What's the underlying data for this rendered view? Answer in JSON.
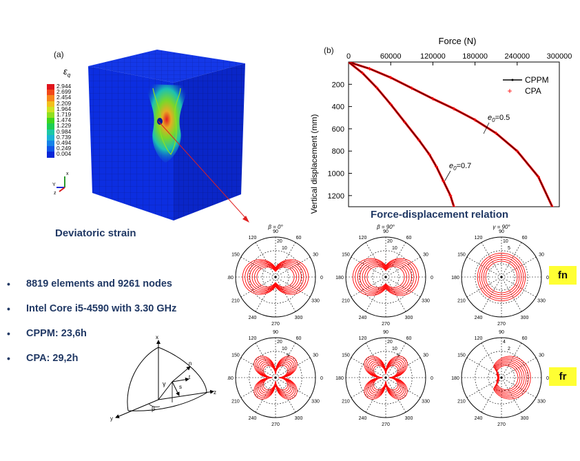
{
  "panel_a": {
    "tag": "(a)",
    "legend_title": "ε",
    "legend_sub": "q",
    "legend_values": [
      "2.944",
      "2.699",
      "2.454",
      "2.209",
      "1.964",
      "1.719",
      "1.474",
      "1.229",
      "0.984",
      "0.739",
      "0.494",
      "0.249",
      "0.004"
    ],
    "legend_colors": [
      "#e0141c",
      "#f24818",
      "#f7861a",
      "#f2c01d",
      "#cfe322",
      "#8fe01f",
      "#3dd61d",
      "#1dce53",
      "#1cc8a6",
      "#1ab2d6",
      "#1582e8",
      "#1054e8",
      "#0a26d8"
    ],
    "axis_labels": {
      "x": "x",
      "y": "Y",
      "z": "z"
    },
    "caption": "Deviatoric strain"
  },
  "panel_b": {
    "tag": "(b)",
    "caption": "Force-displacement relation",
    "chart_data": {
      "type": "line",
      "xlabel": "Force (N)",
      "ylabel": "Vertical displacement (mm)",
      "xlim": [
        0,
        300000
      ],
      "ylim": [
        0,
        1300
      ],
      "y_inverted": true,
      "x_axis_position": "top",
      "xticks": [
        0,
        60000,
        120000,
        180000,
        240000,
        300000
      ],
      "yticks": [
        200,
        400,
        600,
        800,
        1000,
        1200
      ],
      "series": [
        {
          "name": "CPPM",
          "color": "#000000",
          "marker": "line"
        },
        {
          "name": "CPA",
          "color": "#ff0000",
          "marker": "+"
        }
      ],
      "curves": [
        {
          "annotation": "e0=0.5",
          "x": [
            0,
            30000,
            60000,
            90000,
            120000,
            150000,
            180000,
            210000,
            240000,
            270000,
            290000
          ],
          "y": [
            0,
            60,
            140,
            235,
            330,
            420,
            520,
            640,
            800,
            1030,
            1300
          ]
        },
        {
          "annotation": "e0=0.7",
          "x": [
            0,
            20000,
            40000,
            60000,
            80000,
            100000,
            115000,
            125000,
            135000,
            145000,
            150000
          ],
          "y": [
            0,
            100,
            230,
            380,
            540,
            700,
            830,
            940,
            1070,
            1200,
            1300
          ]
        }
      ],
      "legend_position": "top-right"
    },
    "annotation_a": {
      "e": "e",
      "sub": "0",
      "rest": "=0.5"
    },
    "annotation_b": {
      "e": "e",
      "sub": "0",
      "rest": "=0.7"
    }
  },
  "polar_titles": [
    "β = 0°",
    "β = 90°",
    "γ = 90°"
  ],
  "polar_angle_labels": [
    "90",
    "60",
    "30",
    "0",
    "330",
    "300",
    "270",
    "240",
    "210",
    "180",
    "150",
    "120"
  ],
  "polar_radial_labels": [
    [
      "20",
      "10"
    ],
    [
      "20",
      "10"
    ],
    [
      "10",
      "5"
    ],
    [
      "20",
      "10",
      "5"
    ],
    [
      "20",
      "10",
      "5"
    ],
    [
      "4",
      "2"
    ]
  ],
  "row_tags": {
    "top": "fn",
    "bottom": "fr"
  },
  "bullets": [
    "8819 elements and 9261 nodes",
    "Intel Core i5-4590 with 3.30 GHz",
    "CPPM: 23,6h",
    "CPA: 29,2h"
  ],
  "bullet_char": "•",
  "geometry_labels": {
    "x": "x",
    "y": "y",
    "z": "z",
    "n": "n",
    "t": "t",
    "s": "s",
    "gamma": "γ",
    "beta": "β"
  }
}
